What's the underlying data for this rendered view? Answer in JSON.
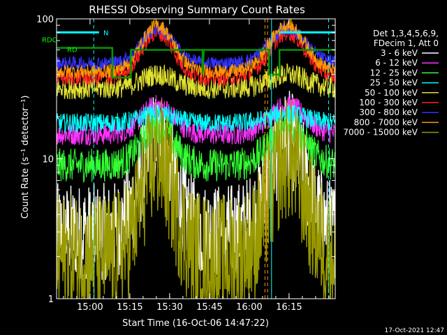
{
  "chart_data": {
    "type": "line",
    "title": "RHESSI Observing Summary Count Rates",
    "xlabel": "Start Time (16-Oct-06 14:47:22)",
    "ylabel": "Count Rate (s⁻¹ detector⁻¹)",
    "yscale": "log",
    "ylim": [
      1,
      100
    ],
    "xlim_minutes": [
      0,
      105
    ],
    "x_ticks": [
      {
        "label": "15:00",
        "minutes": 12.6
      },
      {
        "label": "15:15",
        "minutes": 27.6
      },
      {
        "label": "15:30",
        "minutes": 42.6
      },
      {
        "label": "15:45",
        "minutes": 57.6
      },
      {
        "label": "16:00",
        "minutes": 72.6
      },
      {
        "label": "16:15",
        "minutes": 87.6
      }
    ],
    "y_ticks": [
      {
        "label": "1",
        "value": 1
      },
      {
        "label": "10",
        "value": 10
      },
      {
        "label": "100",
        "value": 100
      }
    ],
    "legend_header": [
      "Det 1,3,4,5,6,9,",
      "FDecim 1, Att 0"
    ],
    "legend_position": "right",
    "series": [
      {
        "name": "3 - 6 keV",
        "color": "#ffffff",
        "base": 3.0,
        "peak": 14,
        "noise": 0.35
      },
      {
        "name": "6 - 12 keV",
        "color": "#ff33ff",
        "base": 15,
        "peak": 24,
        "noise": 0.08
      },
      {
        "name": "12 - 25 keV",
        "color": "#33ff33",
        "base": 9,
        "peak": 17,
        "noise": 0.12
      },
      {
        "name": "25 - 50 keV",
        "color": "#00ffff",
        "base": 18,
        "peak": 21,
        "noise": 0.07
      },
      {
        "name": "50 - 100 keV",
        "color": "#e0e030",
        "base": 32,
        "peak": 40,
        "noise": 0.08
      },
      {
        "name": "100 - 300 keV",
        "color": "#ff2222",
        "base": 38,
        "peak": 80,
        "noise": 0.06
      },
      {
        "name": "300 - 800 keV",
        "color": "#3333ff",
        "base": 48,
        "peak": 85,
        "noise": 0.05
      },
      {
        "name": "800 - 7000 keV",
        "color": "#ff9900",
        "base": 42,
        "peak": 90,
        "noise": 0.05
      },
      {
        "name": "7000 - 15000 keV",
        "color": "#999900",
        "base": 2.0,
        "peak": 10,
        "noise": 0.45
      }
    ],
    "annotations": [
      {
        "text": "RDC",
        "color": "#00ff00"
      },
      {
        "text": "RD",
        "color": "#00ff00"
      },
      {
        "text": "N",
        "color": "#00ffff"
      }
    ],
    "footer_date": "17-Oct-2021 12:47"
  }
}
